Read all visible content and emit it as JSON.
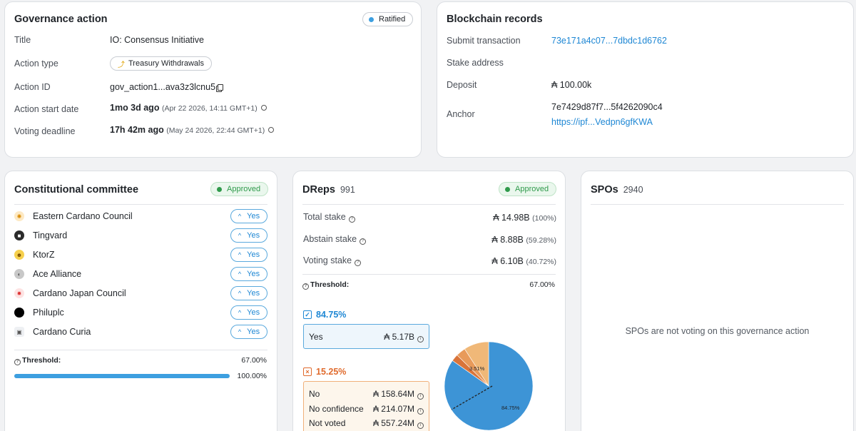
{
  "governance": {
    "title": "Governance action",
    "status": "Ratified",
    "rows": {
      "title_label": "Title",
      "title_value": "IO: Consensus Initiative",
      "type_label": "Action type",
      "type_value": "Treasury Withdrawals",
      "id_label": "Action ID",
      "id_value": "gov_action1...ava3z3lcnu5",
      "start_label": "Action start date",
      "start_rel": "1mo 3d ago",
      "start_abs": "(Apr 22 2026, 14:11 GMT+1)",
      "deadline_label": "Voting deadline",
      "deadline_rel": "17h 42m ago",
      "deadline_abs": "(May 24 2026, 22:44 GMT+1)"
    }
  },
  "blockchain": {
    "title": "Blockchain records",
    "submit_label": "Submit transaction",
    "submit_value": "73e171a4c07...7dbdc1d6762",
    "stake_label": "Stake address",
    "deposit_label": "Deposit",
    "deposit_value": "₳ 100.00k",
    "anchor_label": "Anchor",
    "anchor_hash": "7e7429d87f7...5f4262090c4",
    "anchor_url": "https://ipf...Vedpn6gfKWA"
  },
  "committee": {
    "title": "Constitutional committee",
    "status": "Approved",
    "members": [
      {
        "name": "Eastern Cardano Council",
        "vote": "Yes"
      },
      {
        "name": "Tingvard",
        "vote": "Yes"
      },
      {
        "name": "KtorZ",
        "vote": "Yes"
      },
      {
        "name": "Ace Alliance",
        "vote": "Yes"
      },
      {
        "name": "Cardano Japan Council",
        "vote": "Yes"
      },
      {
        "name": "Philuplc",
        "vote": "Yes"
      },
      {
        "name": "Cardano Curia",
        "vote": "Yes"
      }
    ],
    "threshold_label": "Threshold:",
    "threshold_value": "67.00%",
    "progress_value": "100.00%",
    "progress_fraction": 1.0
  },
  "dreps": {
    "title": "DReps",
    "count": "991",
    "status": "Approved",
    "total_label": "Total stake",
    "total_value": "₳ 14.98B",
    "total_pct": "(100%)",
    "abstain_label": "Abstain stake",
    "abstain_value": "₳ 8.88B",
    "abstain_pct": "(59.28%)",
    "voting_label": "Voting stake",
    "voting_value": "₳ 6.10B",
    "voting_pct": "(40.72%)",
    "threshold_label": "Threshold:",
    "threshold_value": "67.00%",
    "yes_pct": "84.75%",
    "yes_label": "Yes",
    "yes_value": "₳ 5.17B",
    "no_pct": "15.25%",
    "no_label": "No",
    "no_value": "₳ 158.64M",
    "noconf_label": "No confidence",
    "noconf_value": "₳ 214.07M",
    "notvoted_label": "Not voted",
    "notvoted_value": "₳ 557.24M",
    "pie_yes_label": "84.75%",
    "pie_small_label": "3.51%"
  },
  "spos": {
    "title": "SPOs",
    "count": "2940",
    "message": "SPOs are not voting on this governance action"
  },
  "colors": {
    "accent": "#1e87d4",
    "approved": "#2f9a4b",
    "no": "#e06a2c",
    "pie_yes": "#3d94d6",
    "pie_no": "#d9743a",
    "pie_noconf": "#e89a5a",
    "pie_notvoted": "#f0b878"
  }
}
